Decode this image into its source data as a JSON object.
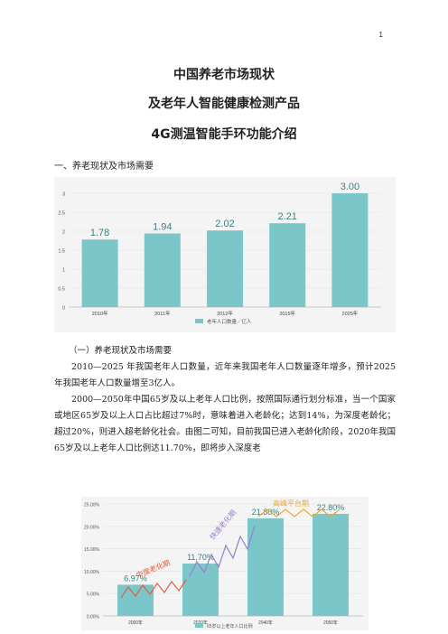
{
  "page_number": "1",
  "titles": [
    "中国养老市场现状",
    "及老年人智能健康检测产品",
    "4G测温智能手环功能介绍"
  ],
  "section1": "一、养老现状及市场需要",
  "subsection1": "（一）养老现状及市场需要",
  "paragraphs": [
    "2010—2025 年我国老年人口数量，近年来我国老年人口数量逐年增多，预计2025年我国老年人口数量增至3亿人。",
    "2000—2050年中国65岁及以上老年人口比例，按照国际通行划分标准，当一个国家或地区65岁及以上人口占比超过7%时，意味着进入老龄化；达到14%，为深度老龄化；超过20%，则进入超老龄化社会。由图二可知，目前我国已进入老龄化阶段，2020年我国65岁及以上老年人口比例达11.70%，即将步入深度老"
  ],
  "chart_data": [
    {
      "type": "bar",
      "categories": [
        "2010年",
        "2011年",
        "2012年",
        "2015年",
        "2025年"
      ],
      "values": [
        1.78,
        1.94,
        2.02,
        2.21,
        3.0
      ],
      "value_labels": [
        "1.78",
        "1.94",
        "2.02",
        "2.21",
        "3.00"
      ],
      "yticks": [
        "0",
        "0.5",
        "1",
        "1.5",
        "2",
        "2.5",
        "3"
      ],
      "ylim": [
        0,
        3.0
      ],
      "legend": "老年人口数量／亿人",
      "color": "#7bc6c8"
    },
    {
      "type": "bar",
      "categories": [
        "2000年",
        "2020年",
        "2040年",
        "2050年"
      ],
      "values": [
        6.97,
        11.7,
        21.8,
        22.8
      ],
      "value_labels": [
        "6.97%",
        "11.70%",
        "21.80%",
        "22.80%"
      ],
      "yticks": [
        "0.00%",
        "5.00%",
        "10.00%",
        "15.00%",
        "20.00%",
        "25.00%"
      ],
      "ylim": [
        0,
        25
      ],
      "legend": "65岁以上老年人口比例",
      "annotations": [
        "中度老化期",
        "快速老化期",
        "高峰平台期"
      ],
      "color": "#7bc6c8",
      "annotation_color": "#f0a830"
    }
  ]
}
